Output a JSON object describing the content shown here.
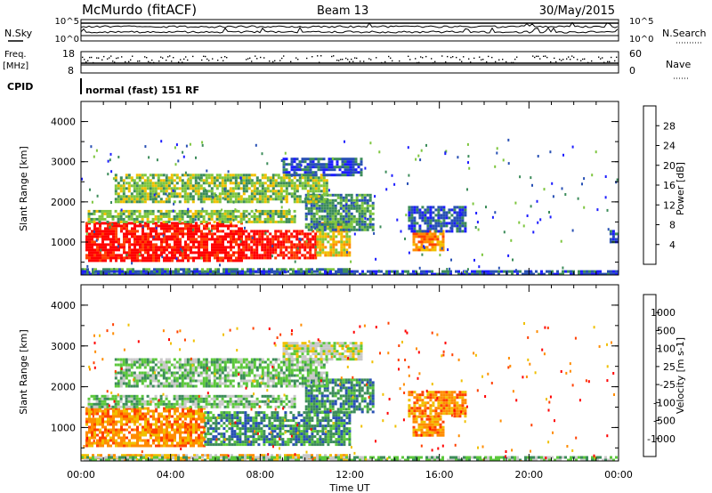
{
  "header": {
    "station": "McMurdo (fitACF)",
    "beam": "Beam 13",
    "date": "30/May/2015"
  },
  "status_strips": {
    "nsky_label": "N.Sky",
    "nsearch_label": "N.Search",
    "noise_ticks": [
      "10^5",
      "10^0"
    ],
    "noise_ticks_right": [
      "10^5",
      "10^0"
    ],
    "freq_label_line1": "Freq.",
    "freq_label_line2": "[MHz]",
    "freq_ticks": [
      "18",
      "8"
    ],
    "nave_label": "Nave",
    "nave_ticks": [
      "60",
      "0"
    ],
    "cpid_label": "CPID",
    "cpid_text": "normal (fast) 151 RF"
  },
  "chart_data": [
    {
      "type": "heatmap",
      "name": "power-panel",
      "title": "",
      "xlabel": "",
      "ylabel": "Slant Range [km]",
      "xlim": [
        0,
        24
      ],
      "ylim": [
        180,
        4500
      ],
      "x_ticks": [
        "00:00",
        "04:00",
        "08:00",
        "12:00",
        "16:00",
        "20:00",
        "00:00"
      ],
      "y_ticks": [
        "1000",
        "2000",
        "3000",
        "4000"
      ],
      "colorbar": {
        "label": "Power [dB]",
        "tick_labels": [
          "28",
          "24",
          "20",
          "16",
          "12",
          "8",
          "4"
        ],
        "colors_low_to_high": [
          "#1d1dff",
          "#2850b4",
          "#3c8c5a",
          "#7ec63f",
          "#f0c000",
          "#ff8c00",
          "#ff4000",
          "#ff0000"
        ]
      },
      "regions": [
        {
          "t0": 0.0,
          "t1": 12.0,
          "r0": 200,
          "r1": 350,
          "level": 2
        },
        {
          "t0": 0.2,
          "t1": 7.2,
          "r0": 550,
          "r1": 1500,
          "level": 7
        },
        {
          "t0": 7.2,
          "t1": 10.5,
          "r0": 600,
          "r1": 1300,
          "level": 7
        },
        {
          "t0": 10.5,
          "t1": 12.0,
          "r0": 700,
          "r1": 1500,
          "level": 4
        },
        {
          "t0": 0.3,
          "t1": 9.5,
          "r0": 1500,
          "r1": 1800,
          "level": 3
        },
        {
          "t0": 10.0,
          "t1": 13.0,
          "r0": 1300,
          "r1": 2200,
          "level": 2
        },
        {
          "t0": 1.5,
          "t1": 11.0,
          "r0": 2000,
          "r1": 2700,
          "level": 3
        },
        {
          "t0": 9.0,
          "t1": 12.5,
          "r0": 2700,
          "r1": 3100,
          "level": 1
        },
        {
          "t0": 14.8,
          "t1": 16.2,
          "r0": 800,
          "r1": 1300,
          "level": 5
        },
        {
          "t0": 14.6,
          "t1": 17.2,
          "r0": 1300,
          "r1": 1900,
          "level": 1
        },
        {
          "t0": 23.6,
          "t1": 24.0,
          "r0": 1000,
          "r1": 1300,
          "level": 1
        },
        {
          "t0": 0.0,
          "t1": 24.0,
          "r0": 180,
          "r1": 300,
          "level": 1
        }
      ]
    },
    {
      "type": "heatmap",
      "name": "velocity-panel",
      "title": "",
      "xlabel": "Time UT",
      "ylabel": "Slant Range [km]",
      "xlim": [
        0,
        24
      ],
      "ylim": [
        180,
        4500
      ],
      "x_ticks": [
        "00:00",
        "04:00",
        "08:00",
        "12:00",
        "16:00",
        "20:00",
        "00:00"
      ],
      "y_ticks": [
        "1000",
        "2000",
        "3000",
        "4000"
      ],
      "colorbar": {
        "label": "Velocity [m s-1]",
        "tick_labels": [
          "1000",
          "500",
          "100",
          "25",
          "-25",
          "-100",
          "-500",
          "-1000"
        ],
        "colors_low_to_high": [
          "#ff0000",
          "#ff4000",
          "#ff8c00",
          "#f0c000",
          "#c8c8c8",
          "#5cc83c",
          "#3c8c5a",
          "#2850b4",
          "#1d1dff"
        ]
      },
      "regions": [
        {
          "t0": 0.0,
          "t1": 12.0,
          "r0": 200,
          "r1": 350,
          "level": 3
        },
        {
          "t0": 0.2,
          "t1": 5.5,
          "r0": 550,
          "r1": 1500,
          "level": 2
        },
        {
          "t0": 5.5,
          "t1": 12.0,
          "r0": 600,
          "r1": 1400,
          "level": 6
        },
        {
          "t0": 10.0,
          "t1": 13.0,
          "r0": 1400,
          "r1": 2200,
          "level": 6
        },
        {
          "t0": 0.3,
          "t1": 9.5,
          "r0": 1500,
          "r1": 1800,
          "level": 5
        },
        {
          "t0": 1.5,
          "t1": 11.0,
          "r0": 2000,
          "r1": 2700,
          "level": 5
        },
        {
          "t0": 9.0,
          "t1": 12.5,
          "r0": 2700,
          "r1": 3100,
          "level": 4
        },
        {
          "t0": 14.8,
          "t1": 16.2,
          "r0": 800,
          "r1": 1300,
          "level": 2
        },
        {
          "t0": 14.6,
          "t1": 17.2,
          "r0": 1300,
          "r1": 1900,
          "level": 2
        },
        {
          "t0": 0.0,
          "t1": 24.0,
          "r0": 180,
          "r1": 300,
          "level": 5
        }
      ]
    }
  ]
}
